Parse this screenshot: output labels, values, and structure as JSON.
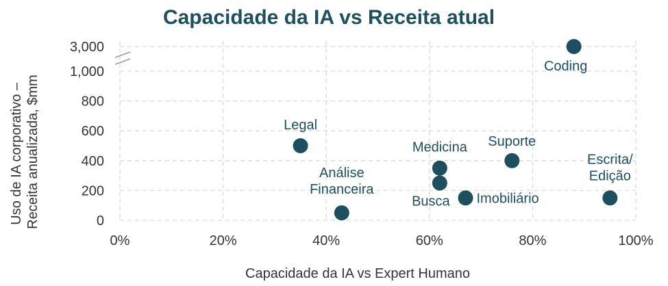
{
  "chart_data": {
    "type": "scatter",
    "title": "Capacidade da IA vs Receita atual",
    "xlabel": "Capacidade da IA vs Expert Humano",
    "ylabel_lines": [
      "Uso de IA corporativo –",
      "Receita anualizada, $mm"
    ],
    "xlim": [
      0,
      100
    ],
    "ylim": [
      0,
      3000
    ],
    "y_axis_break": {
      "from": 1000,
      "to": 3000
    },
    "x_ticks": [
      "0%",
      "20%",
      "40%",
      "60%",
      "80%",
      "100%"
    ],
    "y_ticks": [
      "0",
      "200",
      "400",
      "600",
      "800",
      "1,000",
      "3,000"
    ],
    "grid": true,
    "marker_color": "#1d4f5e",
    "points": [
      {
        "label": [
          "Coding"
        ],
        "x": 88,
        "y": 3000
      },
      {
        "label": [
          "Legal"
        ],
        "x": 35,
        "y": 500
      },
      {
        "label": [
          "Medicina"
        ],
        "x": 62,
        "y": 350
      },
      {
        "label": [
          "Suporte"
        ],
        "x": 76,
        "y": 400
      },
      {
        "label": [
          "Busca"
        ],
        "x": 62,
        "y": 250
      },
      {
        "label": [
          "Imobiliário"
        ],
        "x": 67,
        "y": 150
      },
      {
        "label": [
          "Análise",
          "Financeira"
        ],
        "x": 43,
        "y": 50
      },
      {
        "label": [
          "Escrita/",
          "Edição"
        ],
        "x": 95,
        "y": 150
      }
    ]
  }
}
